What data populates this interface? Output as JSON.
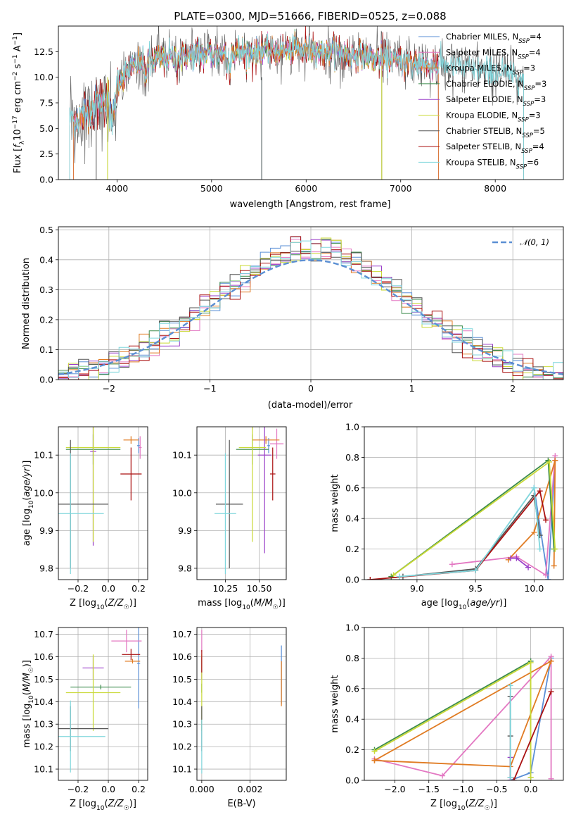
{
  "figure_title": "PLATE=0300, MJD=51666, FIBERID=0525, z=0.088",
  "colors": {
    "chabrier_miles": "#5a8fd6",
    "salpeter_miles": "#e377c2",
    "kroupa_miles": "#e07b22",
    "chabrier_elodie": "#3c8c4c",
    "salpeter_elodie": "#9a3fc9",
    "kroupa_elodie": "#c9d936",
    "chabrier_stelib": "#555555",
    "salpeter_stelib": "#aa1111",
    "kroupa_stelib": "#7fd6dc",
    "gaussian": "#5b8fd3"
  },
  "chart_data": [
    {
      "id": "spectrum",
      "type": "line",
      "title": "PLATE=0300, MJD=51666, FIBERID=0525, z=0.088",
      "xlabel": "wavelength [Angstrom, rest frame]",
      "ylabel": "Flux [f_λ 10^-17 erg cm^-2 s^-1 A^-1]",
      "xlim": [
        3380,
        8720
      ],
      "ylim": [
        0,
        15
      ],
      "xticks": [
        "4000",
        "5000",
        "6000",
        "7000",
        "8000"
      ],
      "yticks": [
        "0.0",
        "2.5",
        "5.0",
        "7.5",
        "10.0",
        "12.5"
      ],
      "grid": false,
      "legend_position": "upper-right",
      "series": [
        {
          "name": "Chabrier MILES, N_SSP=4",
          "color_key": "chabrier_miles"
        },
        {
          "name": "Salpeter MILES, N_SSP=4",
          "color_key": "salpeter_miles"
        },
        {
          "name": "Kroupa MILES, N_SSP=3",
          "color_key": "kroupa_miles"
        },
        {
          "name": "Chabrier ELODIE, N_SSP=3",
          "color_key": "chabrier_elodie"
        },
        {
          "name": "Salpeter ELODIE, N_SSP=3",
          "color_key": "salpeter_elodie"
        },
        {
          "name": "Kroupa ELODIE, N_SSP=3",
          "color_key": "kroupa_elodie"
        },
        {
          "name": "Chabrier STELIB, N_SSP=5",
          "color_key": "chabrier_stelib"
        },
        {
          "name": "Salpeter STELIB, N_SSP=4",
          "color_key": "salpeter_stelib"
        },
        {
          "name": "Kroupa STELIB, N_SSP=6",
          "color_key": "kroupa_stelib"
        }
      ],
      "continuum": {
        "wavelength": [
          3500,
          3700,
          3900,
          4000,
          4200,
          4500,
          5000,
          5500,
          6000,
          6500,
          7000,
          7500,
          8000,
          8300
        ],
        "flux": [
          5.5,
          6.8,
          8.0,
          9.6,
          11.2,
          11.8,
          12.3,
          12.6,
          12.7,
          12.2,
          11.5,
          11.1,
          10.5,
          10.0
        ]
      }
    },
    {
      "id": "residuals",
      "type": "histogram",
      "xlabel": "(data-model)/error",
      "ylabel": "Normed distribution",
      "xlim": [
        -2.5,
        2.5
      ],
      "ylim": [
        0,
        0.51
      ],
      "xticks": [
        "−2",
        "−1",
        "0",
        "1",
        "2"
      ],
      "yticks": [
        "0.0",
        "0.1",
        "0.2",
        "0.3",
        "0.4",
        "0.5"
      ],
      "grid": true,
      "legend_position": "upper-right",
      "gaussian_label": "𝒩(0, 1)",
      "bin_width": 0.1
    },
    {
      "id": "age_vs_Z",
      "type": "errorbar",
      "xlabel": "Z [log10(Z/Z☉)]",
      "ylabel": "age [log10(age/yr)]",
      "xlim": [
        -0.33,
        0.26
      ],
      "ylim": [
        9.77,
        10.175
      ],
      "xticks": [
        "−0.2",
        "0.0",
        "0.2"
      ],
      "yticks": [
        "9.8",
        "9.9",
        "10.0",
        "10.1"
      ],
      "grid": true,
      "points": [
        {
          "color_key": "chabrier_miles",
          "x": 0.2,
          "xerr": 0.01,
          "y": 10.125,
          "yerr": 0.02
        },
        {
          "color_key": "salpeter_miles",
          "x": 0.21,
          "xerr": 0.01,
          "y": 10.12,
          "yerr": 0.03
        },
        {
          "color_key": "kroupa_miles",
          "x": 0.15,
          "xerr": 0.05,
          "y": 10.14,
          "yerr": 0.01
        },
        {
          "color_key": "chabrier_elodie",
          "x": -0.1,
          "xerr": 0.18,
          "y": 10.115,
          "yerr": 0.04
        },
        {
          "color_key": "salpeter_elodie",
          "x": -0.1,
          "xerr": 0.02,
          "y": 10.11,
          "yerr": 0.25
        },
        {
          "color_key": "kroupa_elodie",
          "x": -0.1,
          "xerr": 0.18,
          "y": 10.12,
          "yerr": 0.25
        },
        {
          "color_key": "chabrier_stelib",
          "x": -0.25,
          "xerr": 0.25,
          "y": 9.97,
          "yerr": 0.17
        },
        {
          "color_key": "salpeter_stelib",
          "x": 0.15,
          "xerr": 0.07,
          "y": 10.05,
          "yerr": 0.07
        },
        {
          "color_key": "kroupa_stelib",
          "x": -0.25,
          "xerr": 0.22,
          "y": 9.945,
          "yerr": 0.16
        }
      ]
    },
    {
      "id": "age_vs_mass",
      "type": "errorbar",
      "xlabel": "mass [log10(M/M☉)]",
      "ylabel": "",
      "xlim": [
        10.04,
        10.7
      ],
      "ylim": [
        9.77,
        10.175
      ],
      "xticks": [
        "10.25",
        "10.50"
      ],
      "yticks": [
        "9.8",
        "9.9",
        "10.0",
        "10.1"
      ],
      "grid": true,
      "points": [
        {
          "color_key": "chabrier_miles",
          "x": 10.57,
          "xerr": 0.01,
          "y": 10.125,
          "yerr": 0.02
        },
        {
          "color_key": "salpeter_miles",
          "x": 10.63,
          "xerr": 0.05,
          "y": 10.13,
          "yerr": 0.04
        },
        {
          "color_key": "kroupa_miles",
          "x": 10.55,
          "xerr": 0.1,
          "y": 10.14,
          "yerr": 0.01
        },
        {
          "color_key": "chabrier_elodie",
          "x": 10.45,
          "xerr": 0.12,
          "y": 10.115,
          "yerr": 0.04
        },
        {
          "color_key": "salpeter_elodie",
          "x": 10.54,
          "xerr": 0.05,
          "y": 10.1,
          "yerr": 0.26
        },
        {
          "color_key": "kroupa_elodie",
          "x": 10.45,
          "xerr": 0.1,
          "y": 10.12,
          "yerr": 0.25
        },
        {
          "color_key": "chabrier_stelib",
          "x": 10.28,
          "xerr": 0.1,
          "y": 9.97,
          "yerr": 0.17
        },
        {
          "color_key": "salpeter_stelib",
          "x": 10.6,
          "xerr": 0.02,
          "y": 10.05,
          "yerr": 0.07
        },
        {
          "color_key": "kroupa_stelib",
          "x": 10.25,
          "xerr": 0.08,
          "y": 9.945,
          "yerr": 0.16
        }
      ]
    },
    {
      "id": "weight_vs_age",
      "type": "line",
      "xlabel": "age [log10(age/yr)]",
      "ylabel": "mass weight",
      "xlim": [
        8.55,
        10.25
      ],
      "ylim": [
        0,
        1
      ],
      "xticks": [
        "9.0",
        "9.5",
        "10.0"
      ],
      "yticks": [
        "0.0",
        "0.2",
        "0.4",
        "0.6",
        "0.8",
        "1.0"
      ],
      "grid": true,
      "series": [
        {
          "color_key": "chabrier_miles",
          "x": [
            10.0,
            10.12,
            10.18
          ],
          "y": [
            0.6,
            0.0,
            0.78
          ]
        },
        {
          "color_key": "salpeter_miles",
          "x": [
            9.3,
            9.85,
            10.1,
            10.18
          ],
          "y": [
            0.1,
            0.15,
            0.03,
            0.81
          ]
        },
        {
          "color_key": "kroupa_miles",
          "x": [
            9.78,
            10.0,
            10.18,
            10.17
          ],
          "y": [
            0.13,
            0.31,
            0.78,
            0.09
          ]
        },
        {
          "color_key": "chabrier_elodie",
          "x": [
            8.78,
            10.12,
            10.17
          ],
          "y": [
            0.02,
            0.78,
            0.2
          ]
        },
        {
          "color_key": "salpeter_elodie",
          "x": [
            9.8,
            9.85,
            9.95
          ],
          "y": [
            0.14,
            0.14,
            0.08
          ]
        },
        {
          "color_key": "kroupa_elodie",
          "x": [
            8.8,
            10.13,
            10.18
          ],
          "y": [
            0.03,
            0.77,
            0.2
          ]
        },
        {
          "color_key": "chabrier_stelib",
          "x": [
            8.88,
            9.5,
            10.0,
            10.05
          ],
          "y": [
            0.02,
            0.07,
            0.55,
            0.29
          ]
        },
        {
          "color_key": "salpeter_stelib",
          "x": [
            8.6,
            9.5,
            10.05,
            10.1
          ],
          "y": [
            0.0,
            0.06,
            0.58,
            0.39
          ]
        },
        {
          "color_key": "kroupa_stelib",
          "x": [
            8.85,
            9.5,
            10.0,
            10.05
          ],
          "y": [
            0.02,
            0.06,
            0.6,
            0.2
          ]
        }
      ]
    },
    {
      "id": "mass_vs_Z",
      "type": "errorbar",
      "xlabel": "Z [log10(Z/Z☉)]",
      "ylabel": "mass [log10(M/M☉)]",
      "xlim": [
        -0.33,
        0.26
      ],
      "ylim": [
        10.05,
        10.73
      ],
      "xticks": [
        "−0.2",
        "0.0",
        "0.2"
      ],
      "yticks": [
        "10.1",
        "10.2",
        "10.3",
        "10.4",
        "10.5",
        "10.6",
        "10.7"
      ],
      "grid": true,
      "points": [
        {
          "color_key": "chabrier_miles",
          "x": 0.2,
          "xerr": 0.01,
          "y": 10.57,
          "yerr": 0.2
        },
        {
          "color_key": "salpeter_miles",
          "x": 0.12,
          "xerr": 0.1,
          "y": 10.67,
          "yerr": 0.05
        },
        {
          "color_key": "kroupa_miles",
          "x": 0.16,
          "xerr": 0.05,
          "y": 10.58,
          "yerr": 0.01
        },
        {
          "color_key": "chabrier_elodie",
          "x": -0.05,
          "xerr": 0.2,
          "y": 10.465,
          "yerr": 0.01
        },
        {
          "color_key": "salpeter_elodie",
          "x": -0.1,
          "xerr": 0.07,
          "y": 10.55,
          "yerr": 0.05
        },
        {
          "color_key": "kroupa_elodie",
          "x": -0.1,
          "xerr": 0.18,
          "y": 10.44,
          "yerr": 0.17
        },
        {
          "color_key": "chabrier_stelib",
          "x": -0.25,
          "xerr": 0.25,
          "y": 10.28,
          "yerr": 0.1
        },
        {
          "color_key": "salpeter_stelib",
          "x": 0.15,
          "xerr": 0.06,
          "y": 10.61,
          "yerr": 0.025
        },
        {
          "color_key": "kroupa_stelib",
          "x": -0.25,
          "xerr": 0.23,
          "y": 10.245,
          "yerr": 0.16
        }
      ]
    },
    {
      "id": "mass_vs_EBV",
      "type": "errorbar",
      "xlabel": "E(B-V)",
      "ylabel": "",
      "xlim": [
        -0.0002,
        0.0035
      ],
      "ylim": [
        10.05,
        10.73
      ],
      "xticks": [
        "0.000",
        "0.002"
      ],
      "yticks": [
        "10.1",
        "10.2",
        "10.3",
        "10.4",
        "10.5",
        "10.6",
        "10.7"
      ],
      "grid": true,
      "points": [
        {
          "color_key": "chabrier_miles",
          "x": 0.0033,
          "xerr": 0,
          "y": 10.52,
          "yerr": 0.13
        },
        {
          "color_key": "salpeter_miles",
          "x": 0.0,
          "xerr": 0,
          "y": 10.67,
          "yerr": 0.05
        },
        {
          "color_key": "kroupa_miles",
          "x": 0.0033,
          "xerr": 0,
          "y": 10.48,
          "yerr": 0.1
        },
        {
          "color_key": "chabrier_elodie",
          "x": 0.0,
          "xerr": 0,
          "y": 10.46,
          "yerr": 0.02
        },
        {
          "color_key": "salpeter_elodie",
          "x": 0.0,
          "xerr": 0,
          "y": 10.55,
          "yerr": 0.05
        },
        {
          "color_key": "kroupa_elodie",
          "x": 0.0,
          "xerr": 0,
          "y": 10.44,
          "yerr": 0.17
        },
        {
          "color_key": "chabrier_stelib",
          "x": 0.0,
          "xerr": 0,
          "y": 10.28,
          "yerr": 0.1
        },
        {
          "color_key": "salpeter_stelib",
          "x": 0.0,
          "xerr": 0,
          "y": 10.58,
          "yerr": 0.05
        },
        {
          "color_key": "kroupa_stelib",
          "x": 0.0,
          "xerr": 0,
          "y": 10.2,
          "yerr": 0.12
        }
      ]
    },
    {
      "id": "weight_vs_Z",
      "type": "line",
      "xlabel": "Z [log10(Z/Z☉)]",
      "ylabel": "mass weight",
      "xlim": [
        -2.45,
        0.48
      ],
      "ylim": [
        0,
        1
      ],
      "xticks": [
        "−2.0",
        "−1.5",
        "−1.0",
        "−0.5",
        "0.0"
      ],
      "yticks": [
        "0.0",
        "0.2",
        "0.4",
        "0.6",
        "0.8",
        "1.0"
      ],
      "grid": true,
      "series": [
        {
          "color_key": "chabrier_miles",
          "x": [
            -0.3,
            0.0,
            0.3
          ],
          "y": [
            0.0,
            0.05,
            0.8
          ]
        },
        {
          "color_key": "salpeter_miles",
          "x": [
            -2.3,
            -1.3,
            0.3,
            0.3
          ],
          "y": [
            0.14,
            0.03,
            0.81,
            0.01
          ]
        },
        {
          "color_key": "kroupa_miles",
          "x": [
            -2.3,
            -0.3,
            0.3,
            -2.3
          ],
          "y": [
            0.13,
            0.09,
            0.78,
            0.13
          ]
        },
        {
          "color_key": "chabrier_elodie",
          "x": [
            -2.3,
            0.0,
            0.0
          ],
          "y": [
            0.2,
            0.78,
            0.02
          ]
        },
        {
          "color_key": "salpeter_elodie",
          "x": [
            -0.3,
            -0.3
          ],
          "y": [
            0.0,
            0.15
          ]
        },
        {
          "color_key": "kroupa_elodie",
          "x": [
            -2.3,
            0.0,
            0.0
          ],
          "y": [
            0.19,
            0.77,
            0.02
          ]
        },
        {
          "color_key": "chabrier_stelib",
          "x": [
            -0.3,
            -0.3,
            -0.3
          ],
          "y": [
            0.02,
            0.29,
            0.55
          ]
        },
        {
          "color_key": "salpeter_stelib",
          "x": [
            -0.25,
            0.3
          ],
          "y": [
            0.0,
            0.58
          ]
        },
        {
          "color_key": "kroupa_stelib",
          "x": [
            -0.3,
            -0.3
          ],
          "y": [
            0.02,
            0.62
          ]
        }
      ]
    }
  ]
}
